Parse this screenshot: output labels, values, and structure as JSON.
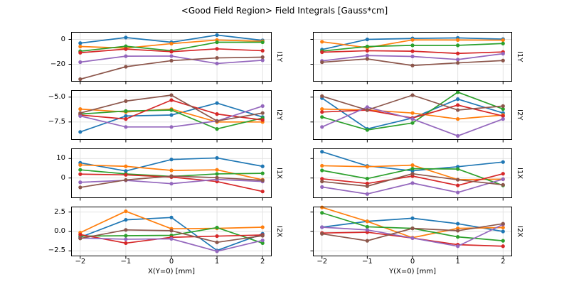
{
  "figure": {
    "title": "<Good Field Region> Field Integrals [Gauss*cm]"
  },
  "style": {
    "grid_color": "#e0e0e0",
    "spine_color": "#000000",
    "text_color": "#000000",
    "background": "#ffffff"
  },
  "chart_data": {
    "type": "line",
    "title": "<Good Field Region> Field Integrals [Gauss*cm]",
    "grid": true,
    "legend": "none",
    "marker": "circle",
    "layout": "4 rows x 2 columns, shared x per column, shared y per row",
    "x": [
      -2,
      -1,
      0,
      1,
      2
    ],
    "xlim": [
      -2.2,
      2.2
    ],
    "xtick_labels": [
      "−2",
      "−1",
      "0",
      "1",
      "2"
    ],
    "series_colors": [
      "#1f77b4",
      "#ff7f0e",
      "#2ca02c",
      "#d62728",
      "#9467bd",
      "#8c564b"
    ],
    "columns": [
      {
        "xlabel": "X(Y=0) [mm]"
      },
      {
        "xlabel": "Y(X=0) [mm]"
      }
    ],
    "rows": [
      {
        "ylabel": "I1Y",
        "ylim": [
          -34,
          6
        ],
        "yticks": [
          0,
          -20
        ],
        "ytick_labels": [
          "0",
          "−20"
        ],
        "subplots": [
          {
            "column": 0,
            "series": [
              [
                -3.0,
                1.5,
                -2.3,
                3.5,
                -0.8
              ],
              [
                -5.7,
                -7.0,
                -3.4,
                -0.5,
                -1.5
              ],
              [
                -9.5,
                -5.5,
                -9.1,
                -2.3,
                -2.3
              ],
              [
                -10.7,
                -7.8,
                -9.9,
                -7.6,
                -9.1
              ],
              [
                -18.3,
                -13.5,
                -13.4,
                -19.4,
                -16.8
              ],
              [
                -32.0,
                -22.0,
                -17.1,
                -14.9,
                -14.3
              ]
            ]
          },
          {
            "column": 1,
            "series": [
              [
                -8.2,
                0.0,
                0.8,
                1.2,
                0.2
              ],
              [
                -1.9,
                -6.7,
                -0.4,
                -0.5,
                -0.6
              ],
              [
                -9.4,
                -5.7,
                -4.8,
                -4.8,
                -3.3
              ],
              [
                -10.3,
                -9.1,
                -9.5,
                -11.3,
                -10.1
              ],
              [
                -17.3,
                -13.0,
                -13.7,
                -16.2,
                -11.5
              ],
              [
                -18.4,
                -15.7,
                -21.0,
                -18.9,
                -17.0
              ]
            ]
          }
        ]
      },
      {
        "ylabel": "I2Y",
        "ylim": [
          -9.3,
          -4.3
        ],
        "yticks": [
          -5.0,
          -7.5
        ],
        "ytick_labels": [
          "−5.0",
          "−7.5"
        ],
        "subplots": [
          {
            "column": 0,
            "series": [
              [
                -8.5,
                -6.9,
                -6.8,
                -5.6,
                -7.0
              ],
              [
                -6.2,
                -6.5,
                -6.2,
                -7.5,
                -7.5
              ],
              [
                -6.7,
                -6.4,
                -6.3,
                -8.2,
                -7.1
              ],
              [
                -6.8,
                -7.2,
                -5.3,
                -6.7,
                -7.3
              ],
              [
                -6.9,
                -8.0,
                -8.0,
                -7.4,
                -5.9
              ],
              [
                -6.6,
                -5.4,
                -4.8,
                -7.4,
                -6.6
              ]
            ]
          },
          {
            "column": 1,
            "series": [
              [
                -5.1,
                -8.2,
                -7.1,
                -5.2,
                -6.6
              ],
              [
                -6.2,
                -6.3,
                -6.6,
                -7.2,
                -6.8
              ],
              [
                -7.0,
                -8.3,
                -7.6,
                -4.5,
                -6.2
              ],
              [
                -6.5,
                -6.3,
                -7.1,
                -5.8,
                -6.9
              ],
              [
                -8.0,
                -6.0,
                -7.2,
                -8.9,
                -7.2
              ],
              [
                -4.9,
                -6.3,
                -4.8,
                -6.3,
                -5.9
              ]
            ]
          }
        ]
      },
      {
        "ylabel": "I1X",
        "ylim": [
          -10.3,
          15.2
        ],
        "yticks": [
          10,
          0
        ],
        "ytick_labels": [
          "10",
          "0"
        ],
        "subplots": [
          {
            "column": 0,
            "series": [
              [
                7.8,
                3.6,
                9.5,
                10.3,
                6.0
              ],
              [
                6.7,
                6.0,
                3.9,
                4.2,
                -0.9
              ],
              [
                4.2,
                2.1,
                0.8,
                2.1,
                2.4
              ],
              [
                2.0,
                1.6,
                0.5,
                -1.8,
                -6.9
              ],
              [
                -2.2,
                -1.2,
                -2.9,
                -0.7,
                -1.8
              ],
              [
                -4.8,
                -1.0,
                1.0,
                0.2,
                -1.2
              ]
            ]
          },
          {
            "column": 1,
            "series": [
              [
                13.5,
                6.2,
                3.7,
                5.8,
                8.2
              ],
              [
                6.3,
                5.8,
                6.6,
                -0.8,
                -0.6
              ],
              [
                3.9,
                -0.3,
                4.8,
                4.6,
                -3.8
              ],
              [
                -0.4,
                -2.8,
                1.0,
                -3.8,
                2.2
              ],
              [
                -4.6,
                -8.2,
                -2.6,
                -7.4,
                -0.6
              ],
              [
                -1.8,
                -4.2,
                2.2,
                -0.9,
                -3.5
              ]
            ]
          }
        ]
      },
      {
        "ylabel": "I2X",
        "ylim": [
          -3.2,
          3.2
        ],
        "yticks": [
          2.5,
          0.0,
          -2.5
        ],
        "ytick_labels": [
          "2.5",
          "0.0",
          "−2.5"
        ],
        "subplots": [
          {
            "column": 0,
            "series": [
              [
                -0.75,
                1.5,
                1.8,
                -2.45,
                -0.3
              ],
              [
                -0.15,
                2.6,
                0.35,
                0.4,
                0.55
              ],
              [
                -0.6,
                -0.55,
                -0.5,
                0.5,
                -1.5
              ],
              [
                -0.4,
                -1.5,
                -0.75,
                -0.6,
                -0.45
              ],
              [
                -0.85,
                -1.0,
                -0.95,
                -2.55,
                -1.15
              ],
              [
                -0.9,
                0.2,
                0.1,
                -1.4,
                -0.55
              ]
            ]
          },
          {
            "column": 1,
            "series": [
              [
                0.55,
                1.3,
                1.7,
                1.0,
                0.0
              ],
              [
                3.1,
                1.3,
                -0.8,
                0.4,
                0.5
              ],
              [
                2.4,
                0.6,
                0.4,
                -0.7,
                -1.2
              ],
              [
                -0.2,
                -0.1,
                -0.85,
                -1.7,
                -1.9
              ],
              [
                0.55,
                0.2,
                -0.85,
                -1.9,
                0.9
              ],
              [
                -0.3,
                -1.2,
                0.4,
                0.1,
                1.0
              ]
            ]
          }
        ]
      }
    ]
  }
}
